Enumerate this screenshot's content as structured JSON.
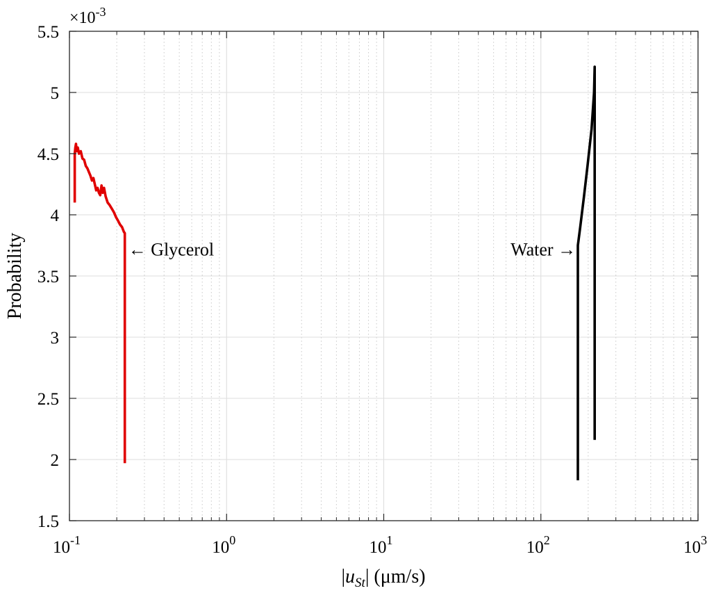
{
  "chart_data": {
    "type": "line",
    "xscale": "log",
    "xlim": [
      0.1,
      1000
    ],
    "ylim": [
      1.5,
      5.5
    ],
    "y_multiplier": "×10-3",
    "y_multiplier_base": "×10",
    "y_multiplier_exp": "-3",
    "xlabel": "|uSt| (μm/s)",
    "xlabel_parts": {
      "open": "|",
      "var": "u",
      "sub": "St",
      "close": "| (μm/s)"
    },
    "ylabel": "Probability",
    "grid": true,
    "x_ticks": [
      {
        "value": 0.1,
        "base": "10",
        "exp": "-1"
      },
      {
        "value": 1,
        "base": "10",
        "exp": "0"
      },
      {
        "value": 10,
        "base": "10",
        "exp": "1"
      },
      {
        "value": 100,
        "base": "10",
        "exp": "2"
      },
      {
        "value": 1000,
        "base": "10",
        "exp": "3"
      }
    ],
    "y_ticks": [
      {
        "value": 1.5,
        "label": "1.5"
      },
      {
        "value": 2,
        "label": "2"
      },
      {
        "value": 2.5,
        "label": "2.5"
      },
      {
        "value": 3,
        "label": "3"
      },
      {
        "value": 3.5,
        "label": "3.5"
      },
      {
        "value": 4,
        "label": "4"
      },
      {
        "value": 4.5,
        "label": "4.5"
      },
      {
        "value": 5,
        "label": "5"
      },
      {
        "value": 5.5,
        "label": "5.5"
      }
    ],
    "series": [
      {
        "name": "Glycerol",
        "color": "#e00000",
        "x": [
          0.108,
          0.108,
          0.109,
          0.11,
          0.111,
          0.113,
          0.115,
          0.118,
          0.121,
          0.124,
          0.127,
          0.13,
          0.133,
          0.136,
          0.139,
          0.142,
          0.145,
          0.148,
          0.151,
          0.154,
          0.157,
          0.16,
          0.163,
          0.166,
          0.17,
          0.175,
          0.18,
          0.186,
          0.192,
          0.198,
          0.204,
          0.21,
          0.216,
          0.222,
          0.225,
          0.225,
          0.225
        ],
        "y": [
          4.1,
          4.5,
          4.55,
          4.58,
          4.52,
          4.55,
          4.5,
          4.52,
          4.46,
          4.45,
          4.4,
          4.38,
          4.35,
          4.32,
          4.28,
          4.3,
          4.25,
          4.2,
          4.22,
          4.18,
          4.16,
          4.24,
          4.18,
          4.22,
          4.15,
          4.1,
          4.08,
          4.05,
          4.02,
          3.98,
          3.95,
          3.92,
          3.9,
          3.86,
          3.85,
          3.6,
          1.97
        ]
      },
      {
        "name": "Water",
        "color": "#000000",
        "x": [
          172,
          172,
          172,
          178,
          188,
          198,
          210,
          218,
          220,
          220,
          220
        ],
        "y": [
          1.83,
          3.5,
          3.75,
          3.9,
          4.15,
          4.4,
          4.7,
          5.0,
          5.21,
          3.5,
          2.16
        ]
      }
    ],
    "annotations": [
      {
        "text": "← Glycerol",
        "series": "Glycerol",
        "x": 0.225,
        "y": 3.72
      },
      {
        "text": "Water →",
        "series": "Water",
        "x": 172,
        "y": 3.72
      }
    ]
  }
}
